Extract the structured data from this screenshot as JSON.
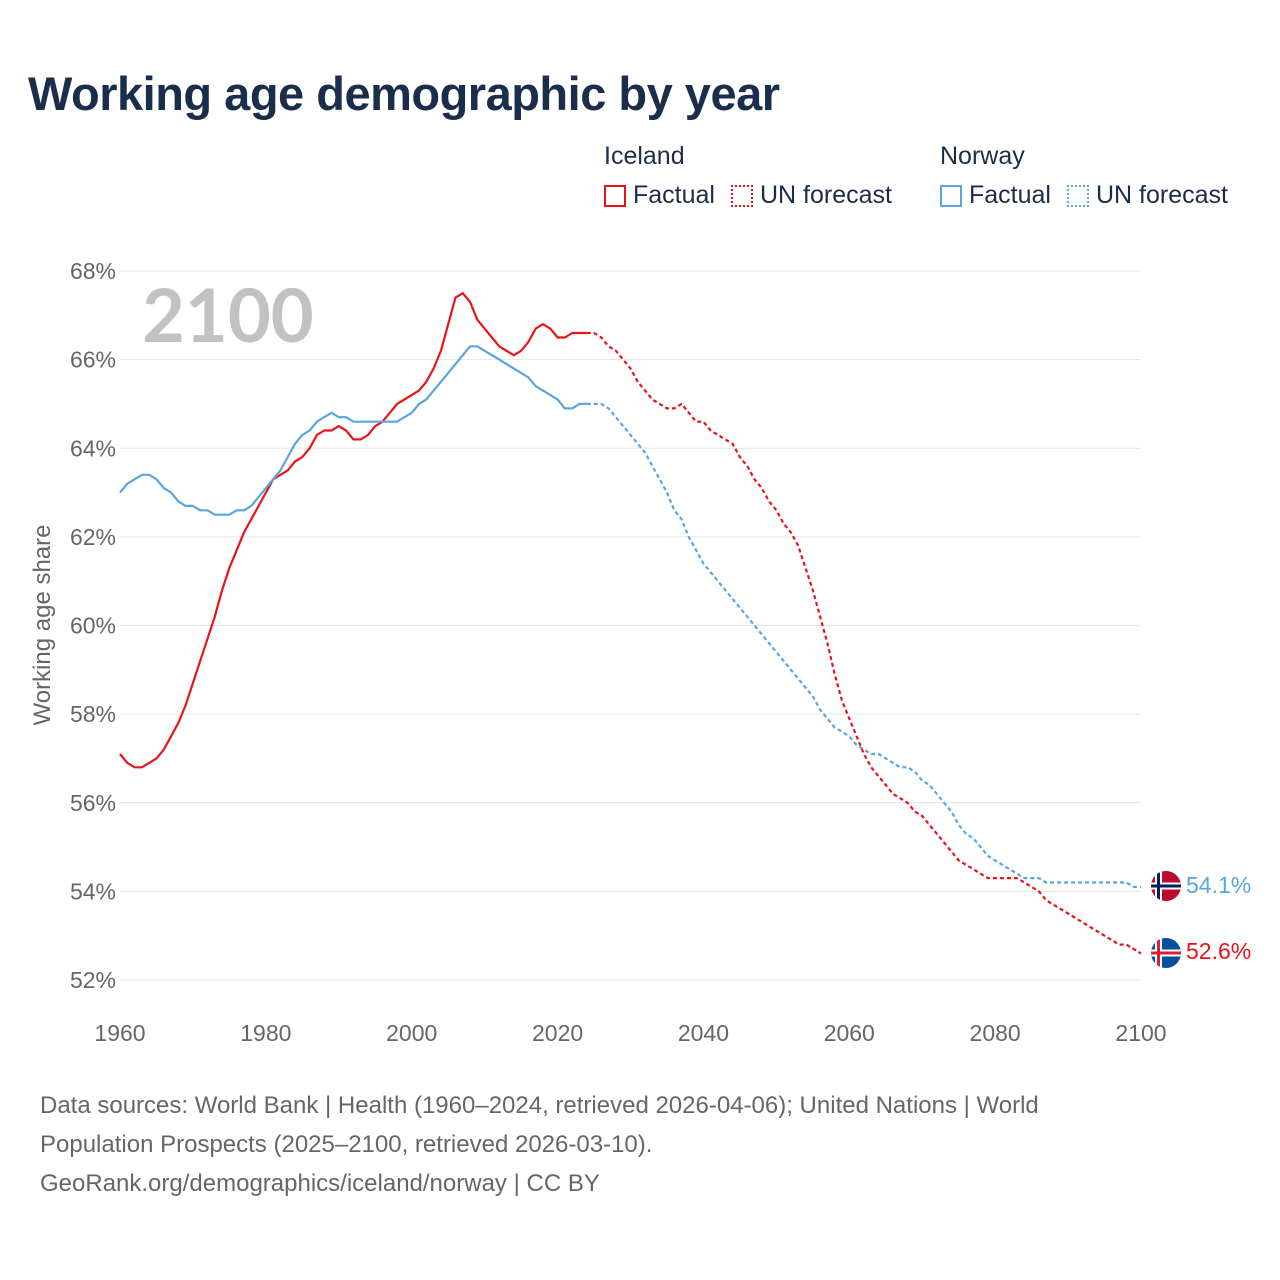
{
  "title": "Working age demographic by year",
  "legend": {
    "groups": [
      {
        "name": "Iceland",
        "factual_label": "Factual",
        "forecast_label": "UN forecast",
        "color": "#e8141a"
      },
      {
        "name": "Norway",
        "factual_label": "Factual",
        "forecast_label": "UN forecast",
        "color": "#5aa5e0"
      }
    ]
  },
  "chart_data": {
    "type": "line",
    "title": "Working age demographic by year",
    "ylabel": "Working age share",
    "xlabel": "",
    "xlim": [
      1960,
      2100
    ],
    "ylim": [
      52,
      68
    ],
    "x_ticks": [
      1960,
      1980,
      2000,
      2020,
      2040,
      2060,
      2080,
      2100
    ],
    "y_ticks": [
      52,
      54,
      56,
      58,
      60,
      62,
      64,
      66,
      68
    ],
    "y_tick_labels": [
      "52%",
      "54%",
      "56%",
      "58%",
      "60%",
      "62%",
      "64%",
      "66%",
      "68%"
    ],
    "year_watermark": "2100",
    "factual_end": 2024,
    "series": [
      {
        "name": "Iceland",
        "color": "#e8141a",
        "end_label": "52.6%",
        "points": [
          [
            1960,
            57.1
          ],
          [
            1961,
            56.9
          ],
          [
            1962,
            56.8
          ],
          [
            1963,
            56.8
          ],
          [
            1964,
            56.9
          ],
          [
            1965,
            57.0
          ],
          [
            1966,
            57.2
          ],
          [
            1967,
            57.5
          ],
          [
            1968,
            57.8
          ],
          [
            1969,
            58.2
          ],
          [
            1970,
            58.7
          ],
          [
            1971,
            59.2
          ],
          [
            1972,
            59.7
          ],
          [
            1973,
            60.2
          ],
          [
            1974,
            60.8
          ],
          [
            1975,
            61.3
          ],
          [
            1976,
            61.7
          ],
          [
            1977,
            62.1
          ],
          [
            1978,
            62.4
          ],
          [
            1979,
            62.7
          ],
          [
            1980,
            63.0
          ],
          [
            1981,
            63.3
          ],
          [
            1982,
            63.4
          ],
          [
            1983,
            63.5
          ],
          [
            1984,
            63.7
          ],
          [
            1985,
            63.8
          ],
          [
            1986,
            64.0
          ],
          [
            1987,
            64.3
          ],
          [
            1988,
            64.4
          ],
          [
            1989,
            64.4
          ],
          [
            1990,
            64.5
          ],
          [
            1991,
            64.4
          ],
          [
            1992,
            64.2
          ],
          [
            1993,
            64.2
          ],
          [
            1994,
            64.3
          ],
          [
            1995,
            64.5
          ],
          [
            1996,
            64.6
          ],
          [
            1997,
            64.8
          ],
          [
            1998,
            65.0
          ],
          [
            1999,
            65.1
          ],
          [
            2000,
            65.2
          ],
          [
            2001,
            65.3
          ],
          [
            2002,
            65.5
          ],
          [
            2003,
            65.8
          ],
          [
            2004,
            66.2
          ],
          [
            2005,
            66.8
          ],
          [
            2006,
            67.4
          ],
          [
            2007,
            67.5
          ],
          [
            2008,
            67.3
          ],
          [
            2009,
            66.9
          ],
          [
            2010,
            66.7
          ],
          [
            2011,
            66.5
          ],
          [
            2012,
            66.3
          ],
          [
            2013,
            66.2
          ],
          [
            2014,
            66.1
          ],
          [
            2015,
            66.2
          ],
          [
            2016,
            66.4
          ],
          [
            2017,
            66.7
          ],
          [
            2018,
            66.8
          ],
          [
            2019,
            66.7
          ],
          [
            2020,
            66.5
          ],
          [
            2021,
            66.5
          ],
          [
            2022,
            66.6
          ],
          [
            2023,
            66.6
          ],
          [
            2024,
            66.6
          ],
          [
            2025,
            66.6
          ],
          [
            2026,
            66.5
          ],
          [
            2027,
            66.3
          ],
          [
            2028,
            66.2
          ],
          [
            2029,
            66.0
          ],
          [
            2030,
            65.8
          ],
          [
            2031,
            65.5
          ],
          [
            2032,
            65.3
          ],
          [
            2033,
            65.1
          ],
          [
            2034,
            65.0
          ],
          [
            2035,
            64.9
          ],
          [
            2036,
            64.9
          ],
          [
            2037,
            65.0
          ],
          [
            2038,
            64.8
          ],
          [
            2039,
            64.6
          ],
          [
            2040,
            64.6
          ],
          [
            2041,
            64.4
          ],
          [
            2042,
            64.3
          ],
          [
            2043,
            64.2
          ],
          [
            2044,
            64.1
          ],
          [
            2045,
            63.8
          ],
          [
            2046,
            63.6
          ],
          [
            2047,
            63.3
          ],
          [
            2048,
            63.1
          ],
          [
            2049,
            62.8
          ],
          [
            2050,
            62.6
          ],
          [
            2051,
            62.3
          ],
          [
            2052,
            62.1
          ],
          [
            2053,
            61.8
          ],
          [
            2054,
            61.3
          ],
          [
            2055,
            60.8
          ],
          [
            2056,
            60.2
          ],
          [
            2057,
            59.6
          ],
          [
            2058,
            58.9
          ],
          [
            2059,
            58.3
          ],
          [
            2060,
            57.9
          ],
          [
            2061,
            57.5
          ],
          [
            2062,
            57.1
          ],
          [
            2063,
            56.8
          ],
          [
            2064,
            56.6
          ],
          [
            2065,
            56.4
          ],
          [
            2066,
            56.2
          ],
          [
            2067,
            56.1
          ],
          [
            2068,
            56.0
          ],
          [
            2069,
            55.8
          ],
          [
            2070,
            55.7
          ],
          [
            2071,
            55.5
          ],
          [
            2072,
            55.3
          ],
          [
            2073,
            55.1
          ],
          [
            2074,
            54.9
          ],
          [
            2075,
            54.7
          ],
          [
            2076,
            54.6
          ],
          [
            2077,
            54.5
          ],
          [
            2078,
            54.4
          ],
          [
            2079,
            54.3
          ],
          [
            2080,
            54.3
          ],
          [
            2081,
            54.3
          ],
          [
            2082,
            54.3
          ],
          [
            2083,
            54.3
          ],
          [
            2084,
            54.2
          ],
          [
            2085,
            54.1
          ],
          [
            2086,
            54.0
          ],
          [
            2087,
            53.8
          ],
          [
            2088,
            53.7
          ],
          [
            2089,
            53.6
          ],
          [
            2090,
            53.5
          ],
          [
            2091,
            53.4
          ],
          [
            2092,
            53.3
          ],
          [
            2093,
            53.2
          ],
          [
            2094,
            53.1
          ],
          [
            2095,
            53.0
          ],
          [
            2096,
            52.9
          ],
          [
            2097,
            52.8
          ],
          [
            2098,
            52.8
          ],
          [
            2099,
            52.7
          ],
          [
            2100,
            52.6
          ]
        ]
      },
      {
        "name": "Norway",
        "color": "#5aa5e0",
        "end_label": "54.1%",
        "points": [
          [
            1960,
            63.0
          ],
          [
            1961,
            63.2
          ],
          [
            1962,
            63.3
          ],
          [
            1963,
            63.4
          ],
          [
            1964,
            63.4
          ],
          [
            1965,
            63.3
          ],
          [
            1966,
            63.1
          ],
          [
            1967,
            63.0
          ],
          [
            1968,
            62.8
          ],
          [
            1969,
            62.7
          ],
          [
            1970,
            62.7
          ],
          [
            1971,
            62.6
          ],
          [
            1972,
            62.6
          ],
          [
            1973,
            62.5
          ],
          [
            1974,
            62.5
          ],
          [
            1975,
            62.5
          ],
          [
            1976,
            62.6
          ],
          [
            1977,
            62.6
          ],
          [
            1978,
            62.7
          ],
          [
            1979,
            62.9
          ],
          [
            1980,
            63.1
          ],
          [
            1981,
            63.3
          ],
          [
            1982,
            63.5
          ],
          [
            1983,
            63.8
          ],
          [
            1984,
            64.1
          ],
          [
            1985,
            64.3
          ],
          [
            1986,
            64.4
          ],
          [
            1987,
            64.6
          ],
          [
            1988,
            64.7
          ],
          [
            1989,
            64.8
          ],
          [
            1990,
            64.7
          ],
          [
            1991,
            64.7
          ],
          [
            1992,
            64.6
          ],
          [
            1993,
            64.6
          ],
          [
            1994,
            64.6
          ],
          [
            1995,
            64.6
          ],
          [
            1996,
            64.6
          ],
          [
            1997,
            64.6
          ],
          [
            1998,
            64.6
          ],
          [
            1999,
            64.7
          ],
          [
            2000,
            64.8
          ],
          [
            2001,
            65.0
          ],
          [
            2002,
            65.1
          ],
          [
            2003,
            65.3
          ],
          [
            2004,
            65.5
          ],
          [
            2005,
            65.7
          ],
          [
            2006,
            65.9
          ],
          [
            2007,
            66.1
          ],
          [
            2008,
            66.3
          ],
          [
            2009,
            66.3
          ],
          [
            2010,
            66.2
          ],
          [
            2011,
            66.1
          ],
          [
            2012,
            66.0
          ],
          [
            2013,
            65.9
          ],
          [
            2014,
            65.8
          ],
          [
            2015,
            65.7
          ],
          [
            2016,
            65.6
          ],
          [
            2017,
            65.4
          ],
          [
            2018,
            65.3
          ],
          [
            2019,
            65.2
          ],
          [
            2020,
            65.1
          ],
          [
            2021,
            64.9
          ],
          [
            2022,
            64.9
          ],
          [
            2023,
            65.0
          ],
          [
            2024,
            65.0
          ],
          [
            2025,
            65.0
          ],
          [
            2026,
            65.0
          ],
          [
            2027,
            64.9
          ],
          [
            2028,
            64.7
          ],
          [
            2029,
            64.5
          ],
          [
            2030,
            64.3
          ],
          [
            2031,
            64.1
          ],
          [
            2032,
            63.9
          ],
          [
            2033,
            63.6
          ],
          [
            2034,
            63.3
          ],
          [
            2035,
            63.0
          ],
          [
            2036,
            62.6
          ],
          [
            2037,
            62.4
          ],
          [
            2038,
            62.0
          ],
          [
            2039,
            61.7
          ],
          [
            2040,
            61.4
          ],
          [
            2041,
            61.2
          ],
          [
            2042,
            61.0
          ],
          [
            2043,
            60.8
          ],
          [
            2044,
            60.6
          ],
          [
            2045,
            60.4
          ],
          [
            2046,
            60.2
          ],
          [
            2047,
            60.0
          ],
          [
            2048,
            59.8
          ],
          [
            2049,
            59.6
          ],
          [
            2050,
            59.4
          ],
          [
            2051,
            59.2
          ],
          [
            2052,
            59.0
          ],
          [
            2053,
            58.8
          ],
          [
            2054,
            58.6
          ],
          [
            2055,
            58.4
          ],
          [
            2056,
            58.1
          ],
          [
            2057,
            57.9
          ],
          [
            2058,
            57.7
          ],
          [
            2059,
            57.6
          ],
          [
            2060,
            57.5
          ],
          [
            2061,
            57.3
          ],
          [
            2062,
            57.2
          ],
          [
            2063,
            57.1
          ],
          [
            2064,
            57.1
          ],
          [
            2065,
            57.0
          ],
          [
            2066,
            56.9
          ],
          [
            2067,
            56.8
          ],
          [
            2068,
            56.8
          ],
          [
            2069,
            56.7
          ],
          [
            2070,
            56.5
          ],
          [
            2071,
            56.4
          ],
          [
            2072,
            56.2
          ],
          [
            2073,
            56.0
          ],
          [
            2074,
            55.8
          ],
          [
            2075,
            55.5
          ],
          [
            2076,
            55.3
          ],
          [
            2077,
            55.2
          ],
          [
            2078,
            55.0
          ],
          [
            2079,
            54.8
          ],
          [
            2080,
            54.7
          ],
          [
            2081,
            54.6
          ],
          [
            2082,
            54.5
          ],
          [
            2083,
            54.4
          ],
          [
            2084,
            54.3
          ],
          [
            2085,
            54.3
          ],
          [
            2086,
            54.3
          ],
          [
            2087,
            54.2
          ],
          [
            2088,
            54.2
          ],
          [
            2089,
            54.2
          ],
          [
            2090,
            54.2
          ],
          [
            2091,
            54.2
          ],
          [
            2092,
            54.2
          ],
          [
            2093,
            54.2
          ],
          [
            2094,
            54.2
          ],
          [
            2095,
            54.2
          ],
          [
            2096,
            54.2
          ],
          [
            2097,
            54.2
          ],
          [
            2098,
            54.2
          ],
          [
            2099,
            54.1
          ],
          [
            2100,
            54.1
          ]
        ]
      }
    ]
  },
  "footer": {
    "line1": "Data sources: World Bank | Health (1960–2024, retrieved 2026-04-06); United Nations | World",
    "line2": "Population Prospects (2025–2100, retrieved 2026-03-10).",
    "line3": "GeoRank.org/demographics/iceland/norway | CC BY"
  }
}
